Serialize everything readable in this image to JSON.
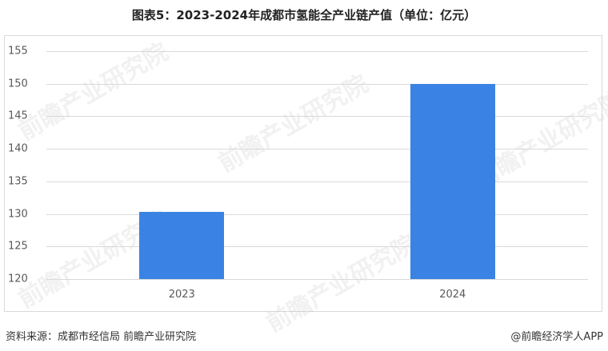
{
  "title": "图表5：2023-2024年成都市氢能全产业链产值（单位：亿元）",
  "footer": {
    "source": "资料来源：成都市经信局  前瞻产业研究院",
    "credit": "@前瞻经济学人APP"
  },
  "watermark": "前瞻产业研究院",
  "colors": {
    "bar": "#3a82e4",
    "grid": "#d9d9d9",
    "axis_text": "#595959"
  },
  "chart_data": {
    "type": "bar",
    "title": "图表5：2023-2024年成都市氢能全产业链产值（单位：亿元）",
    "categories": [
      "2023",
      "2024"
    ],
    "values": [
      130.3,
      150
    ],
    "series": [
      {
        "name": "产值（亿元）",
        "values": [
          130.3,
          150
        ]
      }
    ],
    "xlabel": "",
    "ylabel": "",
    "ylim": [
      120,
      155
    ],
    "yticks": [
      "155",
      "150",
      "145",
      "140",
      "135",
      "130",
      "125",
      "120"
    ],
    "grid": true,
    "legend": "none"
  }
}
